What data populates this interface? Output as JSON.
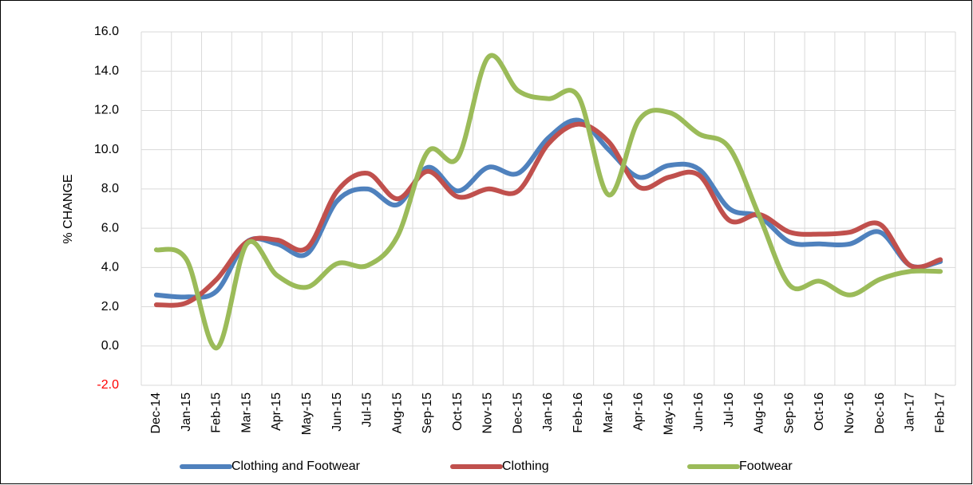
{
  "chart_data": {
    "type": "line",
    "y_label": "% CHANGE",
    "categories": [
      "Dec-14",
      "Jan-15",
      "Feb-15",
      "Mar-15",
      "Apr-15",
      "May-15",
      "Jun-15",
      "Jul-15",
      "Aug-15",
      "Sep-15",
      "Oct-15",
      "Nov-15",
      "Dec-15",
      "Jan-16",
      "Feb-16",
      "Mar-16",
      "Apr-16",
      "May-16",
      "Jun-16",
      "Jul-16",
      "Aug-16",
      "Sep-16",
      "Oct-16",
      "Nov-16",
      "Dec-16",
      "Jan-17",
      "Feb-17"
    ],
    "series": [
      {
        "name": "Clothing and Footwear",
        "color": "#4f81bd",
        "values": [
          2.6,
          2.5,
          2.8,
          5.3,
          5.2,
          4.7,
          7.4,
          8.0,
          7.2,
          9.1,
          7.9,
          9.1,
          8.8,
          10.6,
          11.5,
          10.0,
          8.6,
          9.2,
          9.0,
          7.0,
          6.6,
          5.3,
          5.2,
          5.2,
          5.8,
          4.1,
          4.3
        ]
      },
      {
        "name": "Clothing",
        "color": "#c0504d",
        "values": [
          2.1,
          2.2,
          3.4,
          5.3,
          5.4,
          5.0,
          7.9,
          8.8,
          7.5,
          8.9,
          7.6,
          8.0,
          7.9,
          10.3,
          11.3,
          10.4,
          8.1,
          8.6,
          8.7,
          6.4,
          6.7,
          5.8,
          5.7,
          5.8,
          6.2,
          4.1,
          4.4
        ]
      },
      {
        "name": "Footwear",
        "color": "#9bbb59",
        "values": [
          4.9,
          4.4,
          -0.1,
          5.2,
          3.6,
          3.0,
          4.2,
          4.1,
          5.6,
          9.9,
          9.6,
          14.7,
          13.0,
          12.6,
          12.7,
          7.7,
          11.5,
          11.9,
          10.8,
          10.1,
          6.6,
          3.1,
          3.3,
          2.6,
          3.4,
          3.8,
          3.8
        ]
      }
    ],
    "ylim": [
      -2,
      16
    ],
    "yticks": [
      {
        "value": -2,
        "label": "-2.0"
      },
      {
        "value": 0,
        "label": "0.0"
      },
      {
        "value": 2,
        "label": "2.0"
      },
      {
        "value": 4,
        "label": "4.0"
      },
      {
        "value": 6,
        "label": "6.0"
      },
      {
        "value": 8,
        "label": "8.0"
      },
      {
        "value": 10,
        "label": "10.0"
      },
      {
        "value": 12,
        "label": "12.0"
      },
      {
        "value": 14,
        "label": "14.0"
      },
      {
        "value": 16,
        "label": "16.0"
      }
    ],
    "negative_tick_color": "#ff0000",
    "smooth": true,
    "grid": true,
    "legend": "bottom"
  }
}
